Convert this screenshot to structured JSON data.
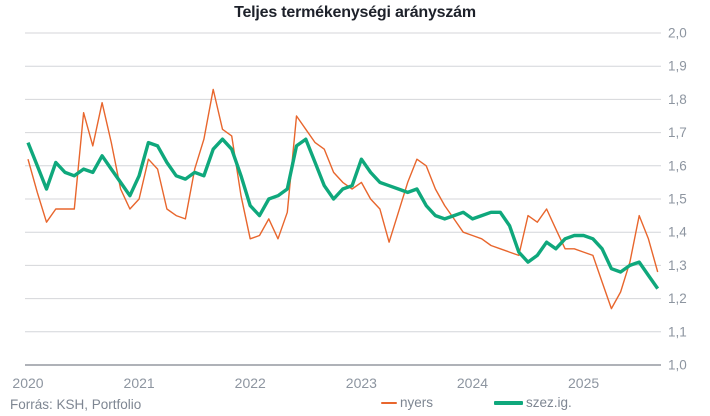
{
  "title": "Teljes termékenységi arányszám",
  "source": "Forrás: KSH, Portfolio",
  "colors": {
    "raw_series": "#E8662D",
    "adjusted_series": "#0FA87C",
    "gridline": "#d4d6da",
    "axis_line": "#5f6670",
    "tick_label": "#8d95a0",
    "title_text": "#1d212a",
    "footer_text": "#7e8692"
  },
  "legend": {
    "items": [
      {
        "label": "nyers",
        "color": "#E8662D",
        "swatch_width": 16,
        "swatch_thickness": 2
      },
      {
        "label": "szez.ig.",
        "color": "#0FA87C",
        "swatch_width": 29,
        "swatch_thickness": 4
      }
    ]
  },
  "chart_data": {
    "type": "line",
    "title": "Teljes termékenységi arányszám",
    "frequency": "monthly",
    "x_start": "2020-01",
    "x_end": "2025-09",
    "x_tick_labels": [
      "2020",
      "2021",
      "2022",
      "2023",
      "2024",
      "2025"
    ],
    "y_tick_labels": [
      "2,0",
      "1,9",
      "1,8",
      "1,7",
      "1,6",
      "1,5",
      "1,4",
      "1,3",
      "1,2",
      "1,1",
      "1,0"
    ],
    "ylim": [
      1.0,
      2.0
    ],
    "grid": "horizontal",
    "legend_position": "bottom",
    "series": [
      {
        "name": "nyers",
        "color": "#E8662D",
        "stroke_width": 1.4,
        "values": [
          1.62,
          1.52,
          1.43,
          1.47,
          1.47,
          1.47,
          1.76,
          1.66,
          1.79,
          1.67,
          1.53,
          1.47,
          1.5,
          1.62,
          1.59,
          1.47,
          1.45,
          1.44,
          1.59,
          1.68,
          1.83,
          1.71,
          1.69,
          1.51,
          1.38,
          1.39,
          1.44,
          1.38,
          1.46,
          1.75,
          1.71,
          1.67,
          1.65,
          1.58,
          1.55,
          1.53,
          1.55,
          1.5,
          1.47,
          1.37,
          1.46,
          1.55,
          1.62,
          1.6,
          1.53,
          1.48,
          1.44,
          1.4,
          1.39,
          1.38,
          1.36,
          1.35,
          1.34,
          1.33,
          1.45,
          1.43,
          1.47,
          1.41,
          1.35,
          1.35,
          1.34,
          1.33,
          1.25,
          1.17,
          1.22,
          1.31,
          1.45,
          1.38,
          1.28
        ]
      },
      {
        "name": "szez.ig.",
        "color": "#0FA87C",
        "stroke_width": 3.4,
        "values": [
          1.67,
          1.6,
          1.53,
          1.61,
          1.58,
          1.57,
          1.59,
          1.58,
          1.63,
          1.59,
          1.55,
          1.51,
          1.57,
          1.67,
          1.66,
          1.61,
          1.57,
          1.56,
          1.58,
          1.57,
          1.65,
          1.68,
          1.65,
          1.57,
          1.48,
          1.45,
          1.5,
          1.51,
          1.53,
          1.66,
          1.68,
          1.61,
          1.54,
          1.5,
          1.53,
          1.54,
          1.62,
          1.58,
          1.55,
          1.54,
          1.53,
          1.52,
          1.53,
          1.48,
          1.45,
          1.44,
          1.45,
          1.46,
          1.44,
          1.45,
          1.46,
          1.46,
          1.42,
          1.34,
          1.31,
          1.33,
          1.37,
          1.35,
          1.38,
          1.39,
          1.39,
          1.38,
          1.35,
          1.29,
          1.28,
          1.3,
          1.31,
          1.27,
          1.23
        ]
      }
    ]
  }
}
